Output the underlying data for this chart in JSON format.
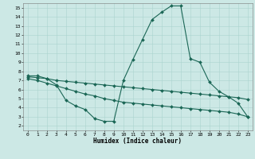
{
  "xlabel": "Humidex (Indice chaleur)",
  "bg_color": "#cce8e5",
  "line_color": "#1a6655",
  "grid_color": "#aad4ce",
  "xlim": [
    -0.5,
    23.5
  ],
  "ylim": [
    1.5,
    15.5
  ],
  "xticks": [
    0,
    1,
    2,
    3,
    4,
    5,
    6,
    7,
    8,
    9,
    10,
    11,
    12,
    13,
    14,
    15,
    16,
    17,
    18,
    19,
    20,
    21,
    22,
    23
  ],
  "yticks": [
    2,
    3,
    4,
    5,
    6,
    7,
    8,
    9,
    10,
    11,
    12,
    13,
    14,
    15
  ],
  "line1_x": [
    0,
    1,
    2,
    3,
    4,
    5,
    6,
    7,
    8,
    9,
    10,
    11,
    12,
    13,
    14,
    15,
    16,
    17,
    18,
    19,
    20,
    21,
    22,
    23
  ],
  "line1_y": [
    7.5,
    7.5,
    7.2,
    6.5,
    4.8,
    4.2,
    3.8,
    2.8,
    2.5,
    2.5,
    7.0,
    9.3,
    11.5,
    13.7,
    14.5,
    15.2,
    15.2,
    9.4,
    9.0,
    6.8,
    5.8,
    5.2,
    4.5,
    3.0
  ],
  "line2_x": [
    0,
    1,
    2,
    3,
    4,
    5,
    6,
    7,
    8,
    9,
    10,
    11,
    12,
    13,
    14,
    15,
    16,
    17,
    18,
    19,
    20,
    21,
    22,
    23
  ],
  "line2_y": [
    7.4,
    7.3,
    7.2,
    7.0,
    6.9,
    6.8,
    6.7,
    6.6,
    6.5,
    6.4,
    6.3,
    6.2,
    6.1,
    6.0,
    5.9,
    5.8,
    5.7,
    5.6,
    5.5,
    5.4,
    5.3,
    5.2,
    5.1,
    4.9
  ],
  "line3_x": [
    0,
    1,
    2,
    3,
    4,
    5,
    6,
    7,
    8,
    9,
    10,
    11,
    12,
    13,
    14,
    15,
    16,
    17,
    18,
    19,
    20,
    21,
    22,
    23
  ],
  "line3_y": [
    7.2,
    7.0,
    6.7,
    6.4,
    6.1,
    5.8,
    5.5,
    5.3,
    5.0,
    4.8,
    4.6,
    4.5,
    4.4,
    4.3,
    4.2,
    4.1,
    4.0,
    3.9,
    3.8,
    3.7,
    3.6,
    3.5,
    3.3,
    3.0
  ],
  "marker_size": 2.0,
  "line_width": 0.8,
  "tick_fontsize": 4.5,
  "xlabel_fontsize": 5.5
}
